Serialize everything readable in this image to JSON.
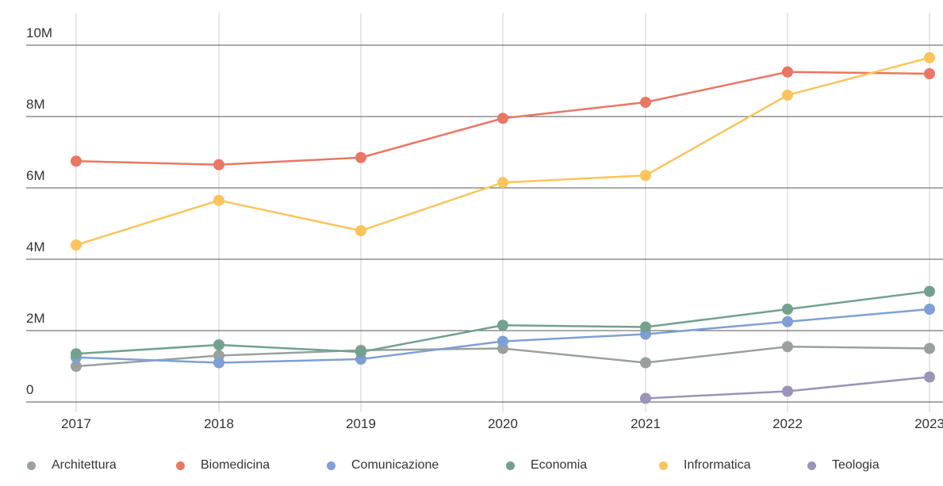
{
  "chart_data": {
    "type": "line",
    "x": [
      "2017",
      "2018",
      "2019",
      "2020",
      "2021",
      "2022",
      "2023"
    ],
    "y_tick_labels": [
      "0",
      "2M",
      "4M",
      "6M",
      "8M",
      "10M"
    ],
    "y_tick_values": [
      0,
      2000000,
      4000000,
      6000000,
      8000000,
      10000000
    ],
    "ylim": [
      0,
      10000000
    ],
    "grid": true,
    "legend_position": "bottom",
    "series": [
      {
        "name": "Architettura",
        "color": "#9aa09d",
        "values": [
          1000000,
          1300000,
          1450000,
          1500000,
          1100000,
          1550000,
          1500000
        ]
      },
      {
        "name": "Biomedicina",
        "color": "#ea7664",
        "values": [
          6750000,
          6650000,
          6850000,
          7950000,
          8400000,
          9250000,
          9200000
        ]
      },
      {
        "name": "Comunicazione",
        "color": "#7f9fd5",
        "values": [
          1250000,
          1100000,
          1200000,
          1700000,
          1900000,
          2250000,
          2600000
        ]
      },
      {
        "name": "Economia",
        "color": "#72a18f",
        "values": [
          1350000,
          1600000,
          1400000,
          2150000,
          2100000,
          2600000,
          3100000
        ]
      },
      {
        "name": "Infrormatica",
        "color": "#fbc45c",
        "values": [
          4400000,
          5650000,
          4800000,
          6150000,
          6350000,
          8600000,
          9650000
        ]
      },
      {
        "name": "Teologia",
        "color": "#9c93b8",
        "values": [
          null,
          null,
          null,
          null,
          100000,
          300000,
          700000
        ]
      }
    ]
  }
}
